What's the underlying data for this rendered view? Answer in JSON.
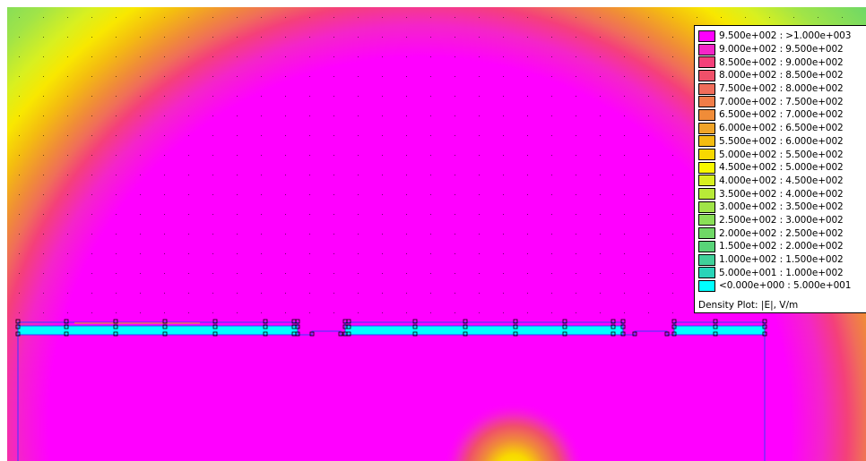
{
  "plot": {
    "background_color": "#ff00ff",
    "outline_color": "#3a3aff",
    "conductor_color": "#00ffff"
  },
  "legend": {
    "title": "Density Plot: |E|, V/m",
    "entries": [
      {
        "label": "9.500e+002 : >1.000e+003",
        "color": "#ff00ff"
      },
      {
        "label": "9.000e+002 : 9.500e+002",
        "color": "#f425c8"
      },
      {
        "label": "8.500e+002 : 9.000e+002",
        "color": "#f4407a"
      },
      {
        "label": "8.000e+002 : 8.500e+002",
        "color": "#f0506a"
      },
      {
        "label": "7.500e+002 : 8.000e+002",
        "color": "#f06d5a"
      },
      {
        "label": "7.000e+002 : 7.500e+002",
        "color": "#f07d48"
      },
      {
        "label": "6.500e+002 : 7.000e+002",
        "color": "#f08c38"
      },
      {
        "label": "6.000e+002 : 6.500e+002",
        "color": "#f0a428"
      },
      {
        "label": "5.500e+002 : 6.000e+002",
        "color": "#f4bc10"
      },
      {
        "label": "5.000e+002 : 5.500e+002",
        "color": "#f8d800"
      },
      {
        "label": "4.500e+002 : 5.000e+002",
        "color": "#f8f800"
      },
      {
        "label": "4.000e+002 : 4.500e+002",
        "color": "#d8f020"
      },
      {
        "label": "3.500e+002 : 4.000e+002",
        "color": "#b8ea38"
      },
      {
        "label": "3.000e+002 : 3.500e+002",
        "color": "#a0e448"
      },
      {
        "label": "2.500e+002 : 3.000e+002",
        "color": "#8ade58"
      },
      {
        "label": "2.000e+002 : 2.500e+002",
        "color": "#6fd866"
      },
      {
        "label": "1.500e+002 : 2.000e+002",
        "color": "#58d478"
      },
      {
        "label": "1.000e+002 : 1.500e+002",
        "color": "#40d09a"
      },
      {
        "label": "5.000e+001 : 1.000e+002",
        "color": "#28d4b8"
      },
      {
        "label": "<0.000e+000 : 5.000e+001",
        "color": "#00ffff"
      }
    ]
  }
}
